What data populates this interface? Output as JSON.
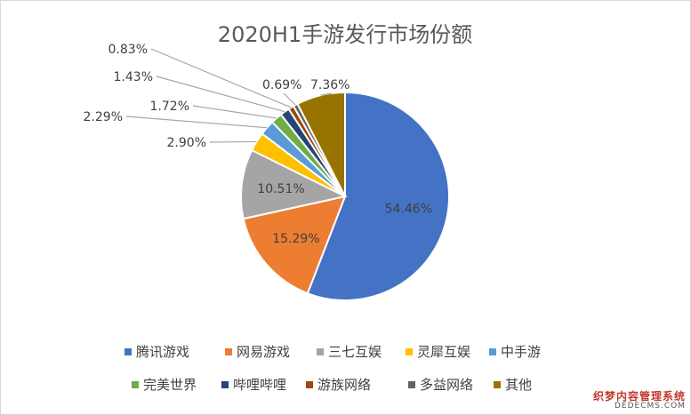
{
  "chart_data": {
    "type": "pie",
    "title": "2020H1手游发行市场份额",
    "legend_position": "bottom",
    "slices": [
      {
        "name": "腾讯游戏",
        "value": 54.46,
        "label": "54.46%",
        "color": "#4472C4"
      },
      {
        "name": "网易游戏",
        "value": 15.29,
        "label": "15.29%",
        "color": "#ED7D31"
      },
      {
        "name": "三七互娱",
        "value": 10.51,
        "label": "10.51%",
        "color": "#A5A5A5"
      },
      {
        "name": "灵犀互娱",
        "value": 2.9,
        "label": "2.90%",
        "color": "#FFC000"
      },
      {
        "name": "中手游",
        "value": 2.29,
        "label": "2.29%",
        "color": "#5B9BD5"
      },
      {
        "name": "完美世界",
        "value": 1.72,
        "label": "1.72%",
        "color": "#70AD47"
      },
      {
        "name": "哔哩哔哩",
        "value": 1.43,
        "label": "1.43%",
        "color": "#264478"
      },
      {
        "name": "游族网络",
        "value": 0.83,
        "label": "0.83%",
        "color": "#9E480E"
      },
      {
        "name": "多益网络",
        "value": 0.69,
        "label": "0.69%",
        "color": "#636363"
      },
      {
        "name": "其他",
        "value": 7.36,
        "label": "7.36%",
        "color": "#997300"
      }
    ]
  },
  "watermark": {
    "line1": "织梦内容管理系统",
    "line2": "DEDECMS.COM"
  }
}
